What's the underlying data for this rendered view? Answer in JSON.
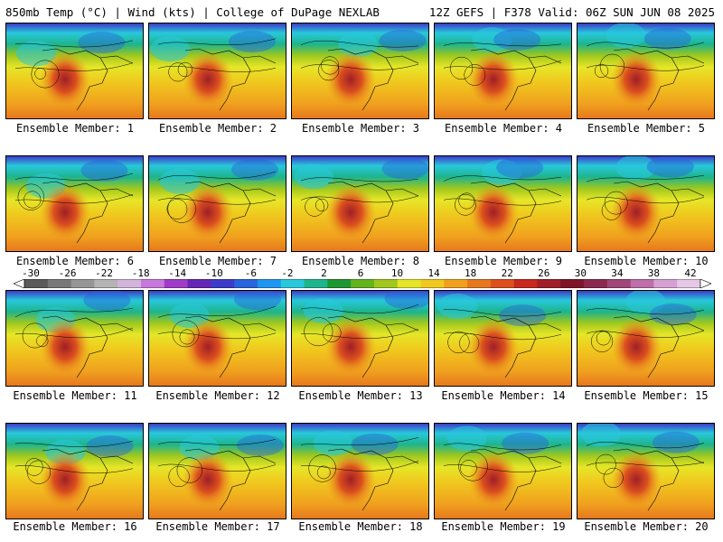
{
  "header": {
    "left": "850mb Temp (°C) | Wind (kts) | College of DuPage NEXLAB",
    "right": "12Z GEFS | F378 Valid: 06Z SUN JUN 08 2025"
  },
  "members": [
    "Ensemble Member: 1",
    "Ensemble Member: 2",
    "Ensemble Member: 3",
    "Ensemble Member: 4",
    "Ensemble Member: 5",
    "Ensemble Member: 6",
    "Ensemble Member: 7",
    "Ensemble Member: 8",
    "Ensemble Member: 9",
    "Ensemble Member: 10",
    "Ensemble Member: 11",
    "Ensemble Member: 12",
    "Ensemble Member: 13",
    "Ensemble Member: 14",
    "Ensemble Member: 15",
    "Ensemble Member: 16",
    "Ensemble Member: 17",
    "Ensemble Member: 18",
    "Ensemble Member: 19",
    "Ensemble Member: 20"
  ],
  "colorbar": {
    "labels": [
      "-30",
      "-26",
      "-22",
      "-18",
      "-14",
      "-10",
      "-6",
      "-2",
      "2",
      "6",
      "10",
      "14",
      "18",
      "22",
      "26",
      "30",
      "34",
      "38",
      "42"
    ],
    "colors": [
      "#5a5a5a",
      "#787878",
      "#969696",
      "#b4b4b4",
      "#d2b4dc",
      "#c878dc",
      "#a03cc8",
      "#6428b4",
      "#3c3cc8",
      "#2864dc",
      "#1e96f0",
      "#28c8dc",
      "#1eb48c",
      "#1e9632",
      "#64b41e",
      "#a0c81e",
      "#e6e628",
      "#f0c81e",
      "#f0a01e",
      "#e6781e",
      "#dc501e",
      "#c8281e",
      "#a01e28",
      "#7e1428",
      "#8c2850",
      "#a04678",
      "#be6eaa",
      "#d7a0d2",
      "#e6c8e6"
    ]
  }
}
